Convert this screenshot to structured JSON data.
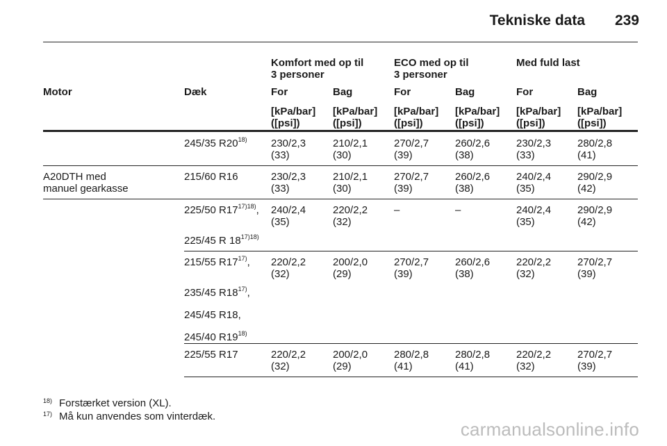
{
  "header": {
    "title": "Tekniske data",
    "page_number": "239"
  },
  "table": {
    "group_headers": [
      "Komfort med op til\n3 personer",
      "ECO med op til\n3 personer",
      "Med fuld last"
    ],
    "col_motor": "Motor",
    "col_tyre": "Dæk",
    "col_for": "For",
    "col_bag": "Bag",
    "unit_label": "[kPa/bar]\n([psi])",
    "rows": [
      {
        "motor": "",
        "tyres": [
          {
            "text": "245/35 R20",
            "sup": "18)",
            "suffix": ""
          }
        ],
        "values": [
          "230/2,3\n(33)",
          "210/2,1\n(30)",
          "270/2,7\n(39)",
          "260/2,6\n(38)",
          "230/2,3\n(33)",
          "280/2,8\n(41)"
        ]
      },
      {
        "motor": "A20DTH med\nmanuel gearkasse",
        "tyres": [
          {
            "text": "215/60 R16",
            "sup": "",
            "suffix": ""
          }
        ],
        "values": [
          "230/2,3\n(33)",
          "210/2,1\n(30)",
          "270/2,7\n(39)",
          "260/2,6\n(38)",
          "240/2,4\n(35)",
          "290/2,9\n(42)"
        ]
      },
      {
        "motor": "",
        "tyres": [
          {
            "text": "225/50 R17",
            "sup": "17)18)",
            "suffix": ","
          },
          {
            "text": "225/45 R 18",
            "sup": "17)18)",
            "suffix": ""
          }
        ],
        "values": [
          "240/2,4\n(35)",
          "220/2,2\n(32)",
          "–",
          "–",
          "240/2,4\n(35)",
          "290/2,9\n(42)"
        ]
      },
      {
        "motor": "",
        "tyres": [
          {
            "text": "215/55 R17",
            "sup": "17)",
            "suffix": ","
          },
          {
            "text": "235/45 R18",
            "sup": "17)",
            "suffix": ","
          },
          {
            "text": "245/45 R18,",
            "sup": "",
            "suffix": ""
          },
          {
            "text": "245/40 R19",
            "sup": "18)",
            "suffix": ""
          }
        ],
        "values": [
          "220/2,2\n(32)",
          "200/2,0\n(29)",
          "270/2,7\n(39)",
          "260/2,6\n(38)",
          "220/2,2\n(32)",
          "270/2,7\n(39)"
        ]
      },
      {
        "motor": "",
        "tyres": [
          {
            "text": "225/55 R17",
            "sup": "",
            "suffix": ""
          }
        ],
        "values": [
          "220/2,2\n(32)",
          "200/2,0\n(29)",
          "280/2,8\n(41)",
          "280/2,8\n(41)",
          "220/2,2\n(32)",
          "270/2,7\n(39)"
        ]
      }
    ]
  },
  "footnotes": [
    {
      "mark": "18)",
      "text": "Forstærket version (XL)."
    },
    {
      "mark": "17)",
      "text": "Må kun anvendes som vinterdæk."
    }
  ],
  "watermark": "carmanualsonline.info"
}
